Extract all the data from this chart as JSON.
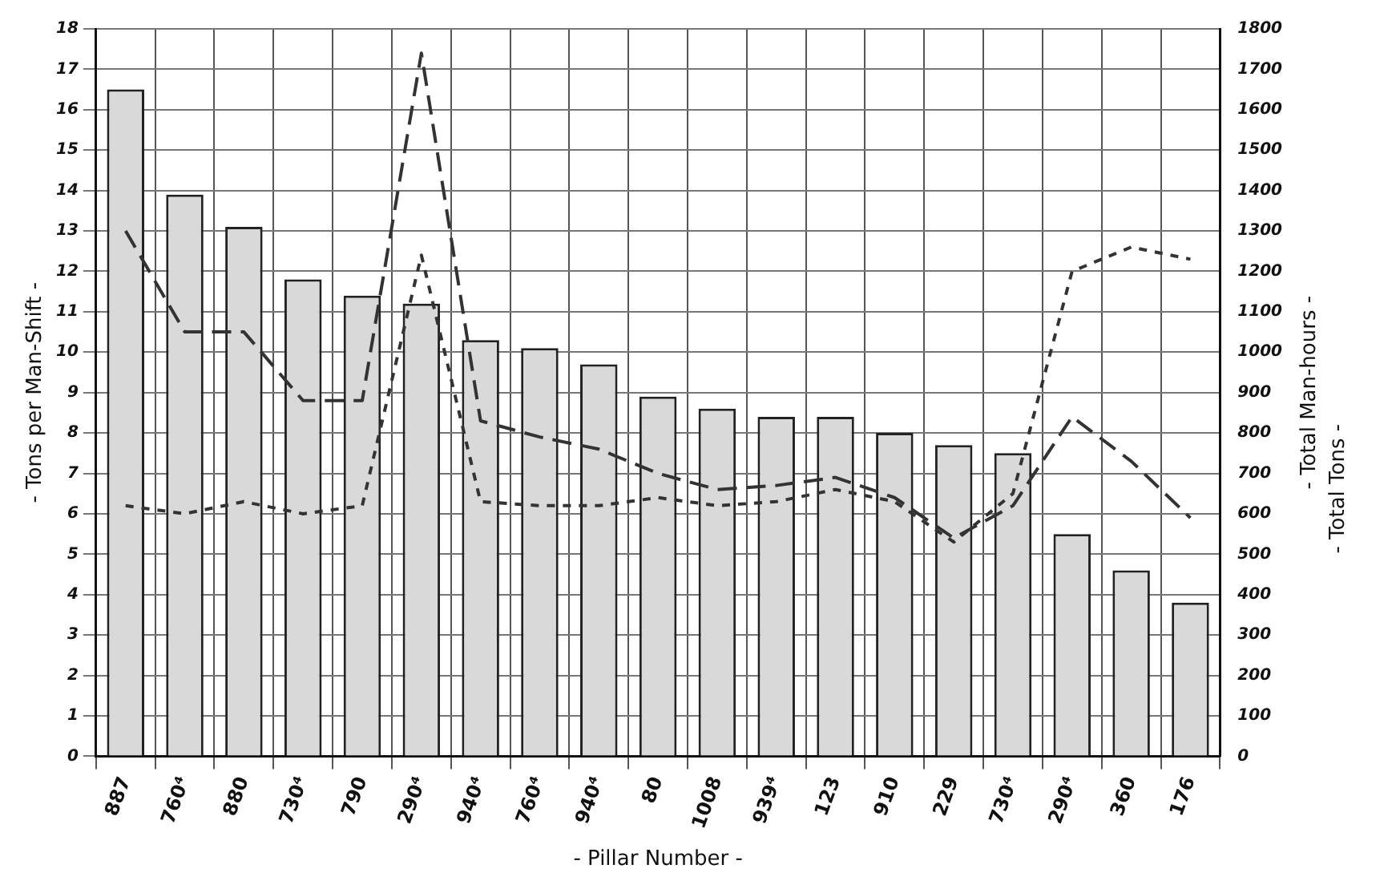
{
  "chart_data": {
    "type": "bar",
    "xlabel": "- Pillar Number -",
    "ylabel": "- Tons per Man-Shift -",
    "y2label": "- Total Man-hours -",
    "annotations": [
      "- Total Tons -"
    ],
    "categories": [
      "887",
      "760⁴",
      "880",
      "730⁴",
      "790",
      "290⁴",
      "940⁴",
      "760⁴",
      "940⁴",
      "80",
      "1008",
      "939⁴",
      "123",
      "910",
      "229",
      "730⁴",
      "290⁴",
      "360",
      "176"
    ],
    "series": [
      {
        "color": "#d9d9d9",
        "values": [
          16.5,
          13.9,
          13.1,
          11.8,
          11.4,
          11.2,
          10.3,
          10.1,
          9.7,
          8.9,
          8.6,
          8.4,
          8.4,
          8.0,
          7.7,
          7.5,
          5.5,
          4.6,
          3.8
        ]
      },
      {
        "type": "line",
        "axis": "y2",
        "color": "#333333",
        "line_style": "dashed",
        "values": [
          1300,
          1050,
          1050,
          880,
          880,
          1740,
          830,
          790,
          760,
          700,
          660,
          670,
          690,
          640,
          540,
          620,
          840,
          730,
          590
        ]
      },
      {
        "type": "line",
        "axis": "y2",
        "color": "#333333",
        "line_style": "dotted",
        "values": [
          620,
          600,
          630,
          600,
          620,
          1240,
          630,
          620,
          620,
          640,
          620,
          630,
          660,
          630,
          530,
          650,
          1200,
          1260,
          1230
        ]
      }
    ],
    "ylim": [
      0,
      18
    ],
    "yticks": [
      0,
      1,
      2,
      3,
      4,
      5,
      6,
      7,
      8,
      9,
      10,
      11,
      12,
      13,
      14,
      15,
      16,
      17,
      18
    ],
    "y2lim": [
      0,
      1800
    ],
    "y2ticks": [
      0,
      100,
      200,
      300,
      400,
      500,
      600,
      700,
      800,
      900,
      1000,
      1100,
      1200,
      1300,
      1400,
      1500,
      1600,
      1700,
      1800
    ],
    "grid": true,
    "legend": false,
    "marker": "none"
  }
}
